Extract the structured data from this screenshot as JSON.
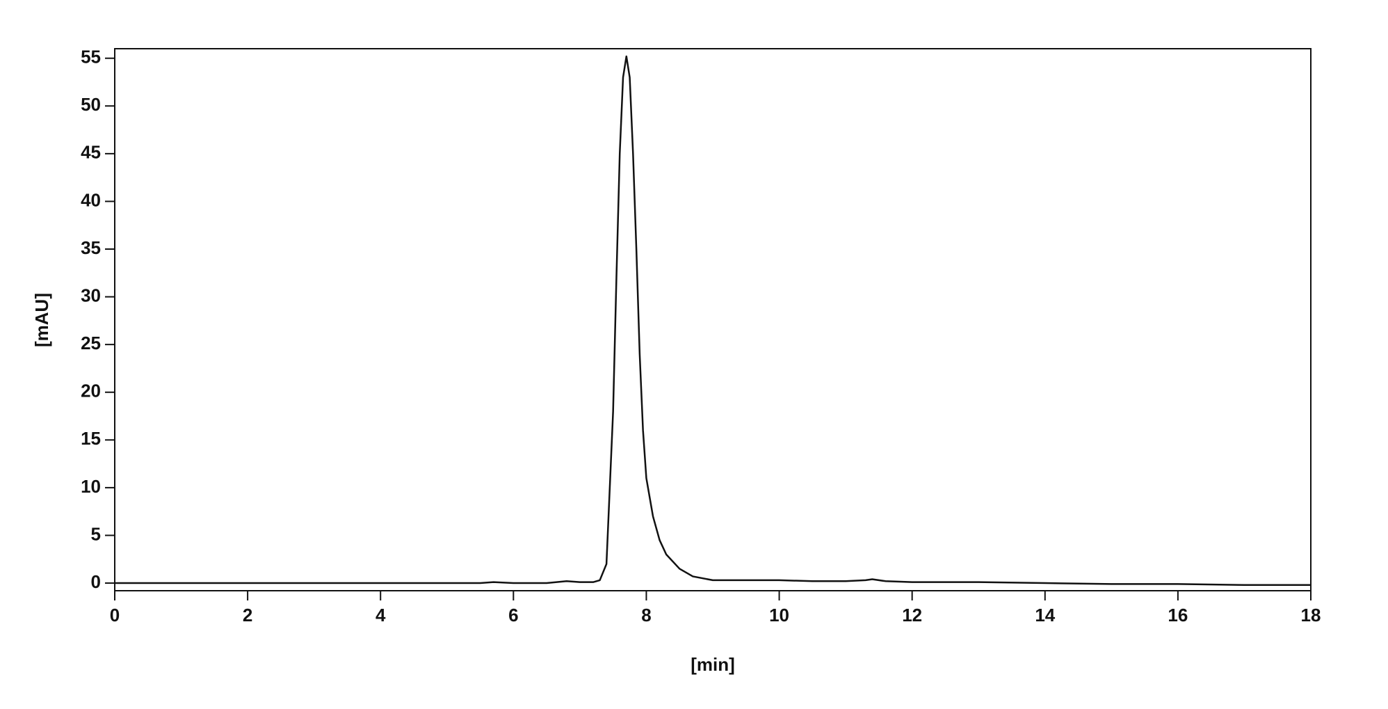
{
  "chart_data": {
    "type": "line",
    "x_label": "[min]",
    "y_label": "[mAU]",
    "x": [
      0,
      1,
      2,
      3,
      4,
      5,
      5.5,
      5.7,
      6,
      6.5,
      6.8,
      7,
      7.2,
      7.3,
      7.4,
      7.5,
      7.55,
      7.6,
      7.65,
      7.7,
      7.75,
      7.8,
      7.85,
      7.9,
      7.95,
      8.0,
      8.1,
      8.2,
      8.3,
      8.5,
      8.7,
      9.0,
      9.5,
      10,
      10.5,
      11,
      11.3,
      11.4,
      11.6,
      12,
      13,
      14,
      15,
      16,
      17,
      18
    ],
    "series": [
      {
        "color": "#111111",
        "values": [
          0,
          0,
          0,
          0,
          0,
          0,
          0,
          0.1,
          0,
          0,
          0.2,
          0.1,
          0.1,
          0.3,
          2,
          18,
          32,
          45,
          53,
          55.2,
          53,
          45,
          35,
          24,
          16,
          11,
          7,
          4.5,
          3,
          1.5,
          0.7,
          0.3,
          0.3,
          0.3,
          0.2,
          0.2,
          0.3,
          0.4,
          0.2,
          0.1,
          0.1,
          0,
          -0.1,
          -0.1,
          -0.2,
          -0.2
        ]
      }
    ],
    "xlim": [
      0,
      18
    ],
    "ylim": [
      -0.8,
      56
    ],
    "xticks": [
      0,
      2,
      4,
      6,
      8,
      10,
      12,
      14,
      16,
      18
    ],
    "yticks": [
      0,
      5,
      10,
      15,
      20,
      25,
      30,
      35,
      40,
      45,
      50,
      55
    ]
  }
}
